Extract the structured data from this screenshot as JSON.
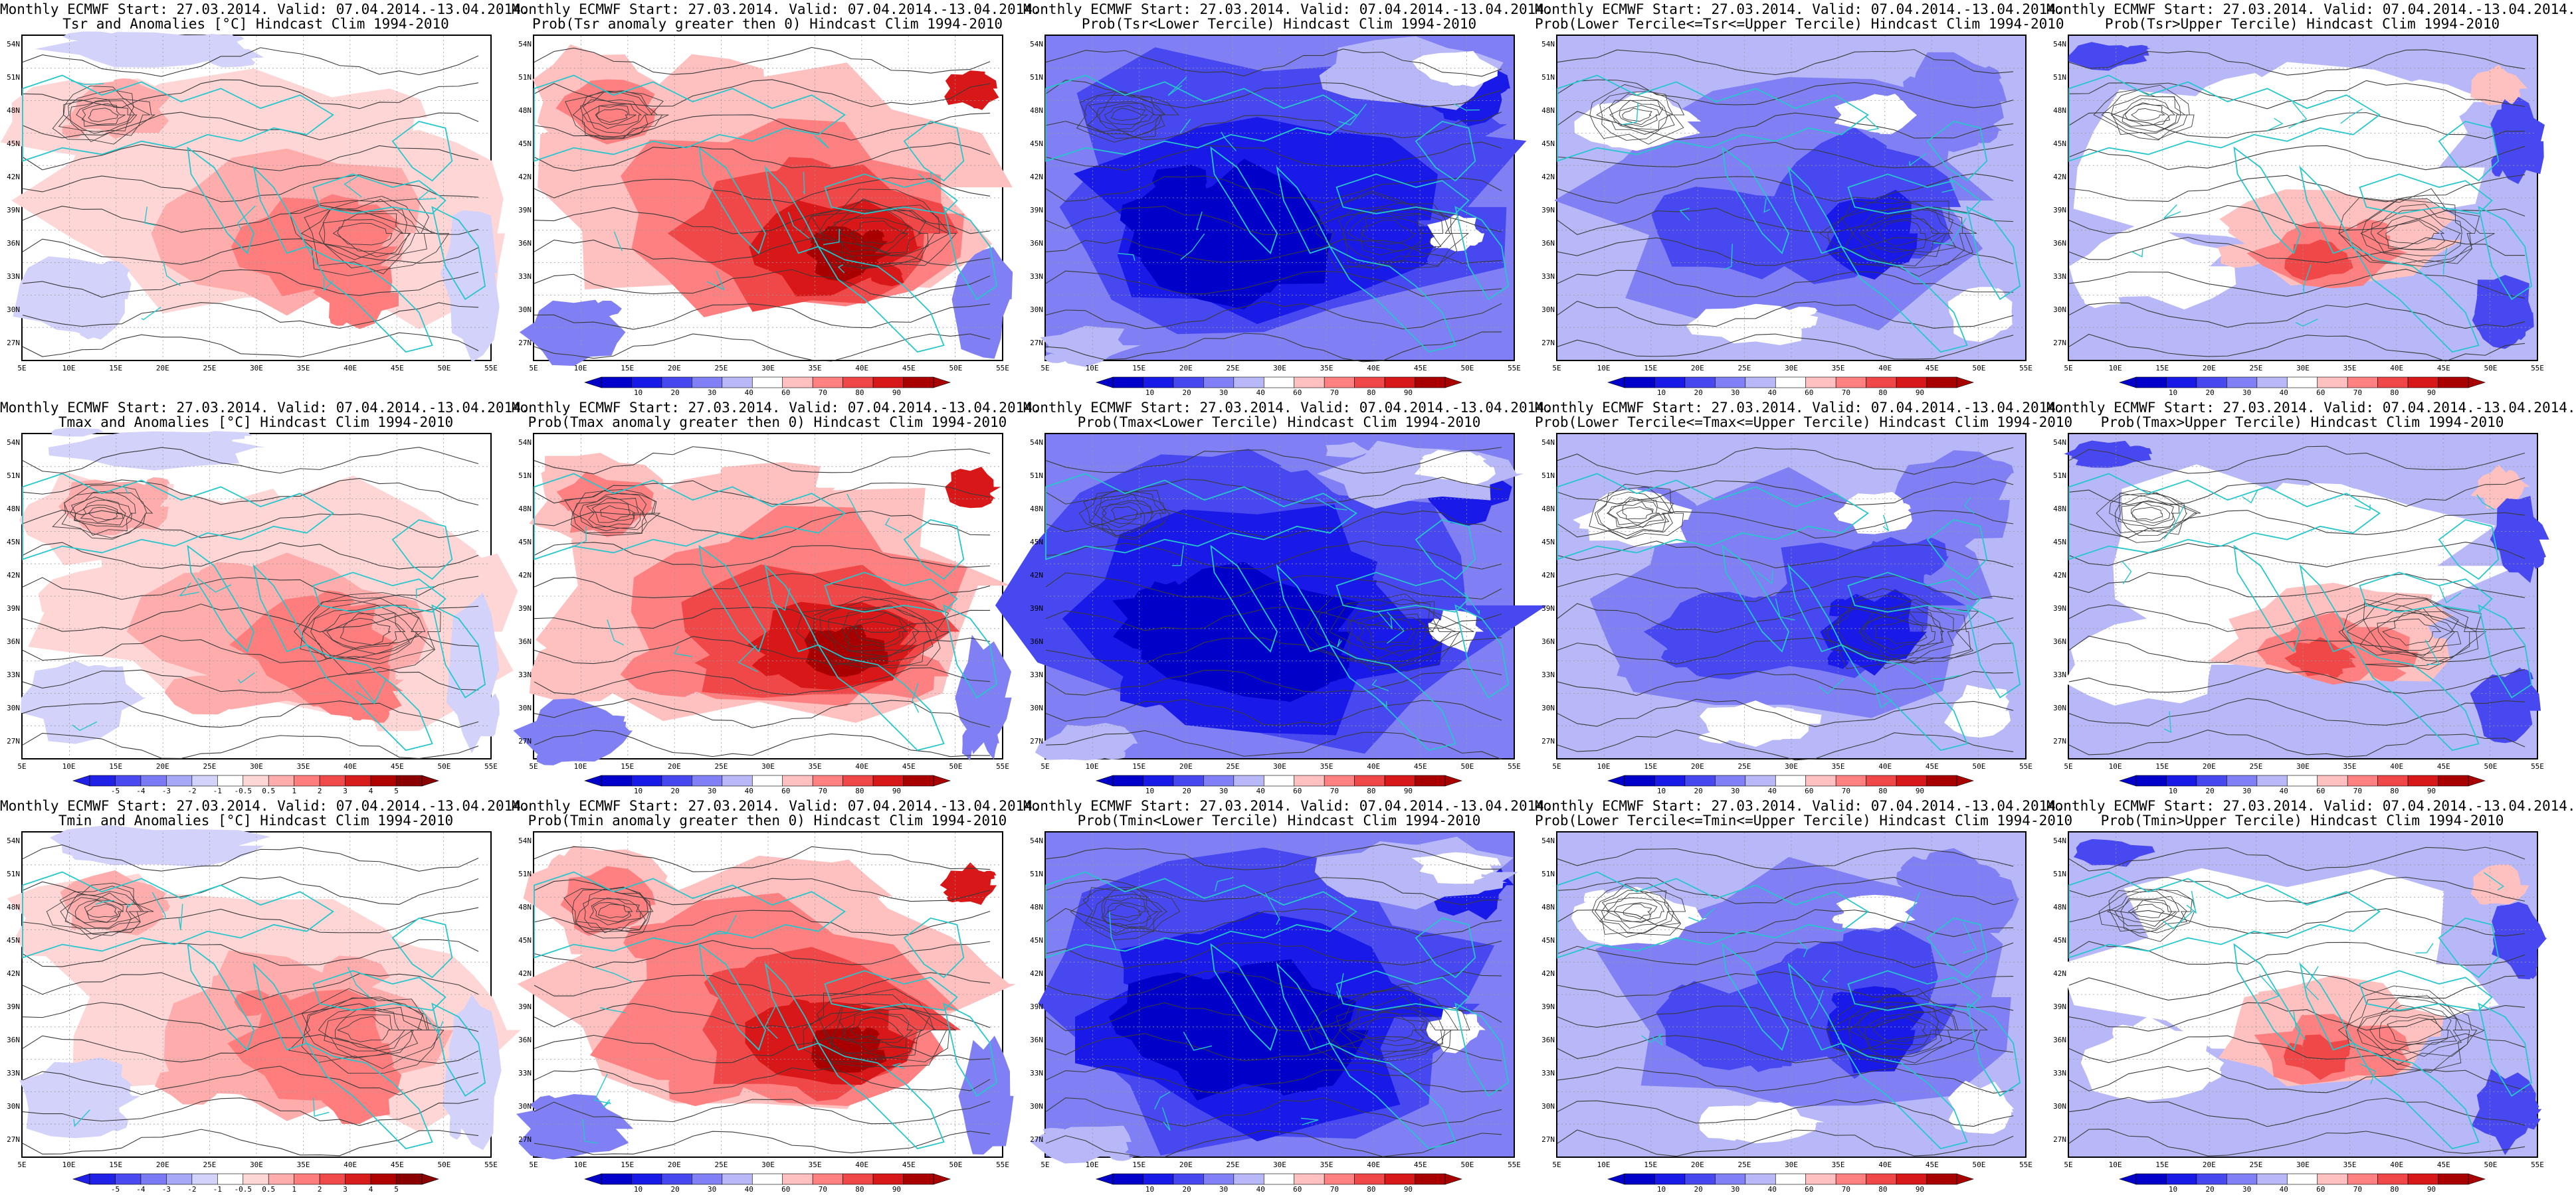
{
  "panels": [
    {
      "title1": "Monthly ECMWF Start: 27.03.2014. Valid: 07.04.2014.-13.04.2014.",
      "title2": "Tsr and Anomalies [°C] Hindcast Clim 1994-2010",
      "kind": "anom",
      "colorbar": []
    },
    {
      "title1": "Monthly ECMWF Start: 27.03.2014. Valid: 07.04.2014.-13.04.2014.",
      "title2": "Prob(Tsr anomaly greater then 0) Hindcast Clim 1994-2010",
      "kind": "warm",
      "colorbar": [
        "10",
        "20",
        "30",
        "40",
        "60",
        "70",
        "80",
        "90"
      ]
    },
    {
      "title1": "Monthly ECMWF Start: 27.03.2014. Valid: 07.04.2014.-13.04.2014.",
      "title2": "Prob(Tsr<Lower Tercile) Hindcast Clim 1994-2010",
      "kind": "cold",
      "colorbar": [
        "10",
        "20",
        "30",
        "40",
        "60",
        "70",
        "80",
        "90"
      ]
    },
    {
      "title1": "Monthly ECMWF Start: 27.03.2014. Valid: 07.04.2014.-13.04.2014.",
      "title2": "Prob(Lower Tercile<=Tsr<=Upper Tercile) Hindcast Clim 1994-2010",
      "kind": "mid",
      "colorbar": [
        "10",
        "20",
        "30",
        "40",
        "60",
        "70",
        "80",
        "90"
      ]
    },
    {
      "title1": "Monthly ECMWF Start: 27.03.2014. Valid: 07.04.2014.-13.04.2014.",
      "title2": "Prob(Tsr>Upper Tercile) Hindcast Clim 1994-2010",
      "kind": "upper",
      "colorbar": [
        "10",
        "20",
        "30",
        "40",
        "60",
        "70",
        "80",
        "90"
      ]
    },
    {
      "title1": "Monthly ECMWF Start: 27.03.2014. Valid: 07.04.2014.-13.04.2014.",
      "title2": "Tmax and Anomalies [°C] Hindcast Clim 1994-2010",
      "kind": "anom",
      "colorbar": [
        "-5",
        "-4",
        "-3",
        "-2",
        "-1",
        "-0.5",
        "0.5",
        "1",
        "2",
        "3",
        "4",
        "5"
      ]
    },
    {
      "title1": "Monthly ECMWF Start: 27.03.2014. Valid: 07.04.2014.-13.04.2014.",
      "title2": "Prob(Tmax anomaly greater then 0) Hindcast Clim 1994-2010",
      "kind": "warm",
      "colorbar": [
        "10",
        "20",
        "30",
        "40",
        "60",
        "70",
        "80",
        "90"
      ]
    },
    {
      "title1": "Monthly ECMWF Start: 27.03.2014. Valid: 07.04.2014.-13.04.2014.",
      "title2": "Prob(Tmax<Lower Tercile) Hindcast Clim 1994-2010",
      "kind": "cold",
      "colorbar": [
        "10",
        "20",
        "30",
        "40",
        "60",
        "70",
        "80",
        "90"
      ]
    },
    {
      "title1": "Monthly ECMWF Start: 27.03.2014. Valid: 07.04.2014.-13.04.2014.",
      "title2": "Prob(Lower Tercile<=Tmax<=Upper Tercile) Hindcast Clim 1994-2010",
      "kind": "mid",
      "colorbar": [
        "10",
        "20",
        "30",
        "40",
        "60",
        "70",
        "80",
        "90"
      ]
    },
    {
      "title1": "Monthly ECMWF Start: 27.03.2014. Valid: 07.04.2014.-13.04.2014.",
      "title2": "Prob(Tmax>Upper Tercile) Hindcast Clim 1994-2010",
      "kind": "upper",
      "colorbar": [
        "10",
        "20",
        "30",
        "40",
        "60",
        "70",
        "80",
        "90"
      ]
    },
    {
      "title1": "Monthly ECMWF Start: 27.03.2014. Valid: 07.04.2014.-13.04.2014.",
      "title2": "Tmin and Anomalies [°C] Hindcast Clim 1994-2010",
      "kind": "anom",
      "colorbar": [
        "-5",
        "-4",
        "-3",
        "-2",
        "-1",
        "-0.5",
        "0.5",
        "1",
        "2",
        "3",
        "4",
        "5"
      ]
    },
    {
      "title1": "Monthly ECMWF Start: 27.03.2014. Valid: 07.04.2014.-13.04.2014.",
      "title2": "Prob(Tmin anomaly greater then 0) Hindcast Clim 1994-2010",
      "kind": "warm",
      "colorbar": [
        "10",
        "20",
        "30",
        "40",
        "60",
        "70",
        "80",
        "90"
      ]
    },
    {
      "title1": "Monthly ECMWF Start: 27.03.2014. Valid: 07.04.2014.-13.04.2014.",
      "title2": "Prob(Tmin<Lower Tercile) Hindcast Clim 1994-2010",
      "kind": "cold",
      "colorbar": [
        "10",
        "20",
        "30",
        "40",
        "60",
        "70",
        "80",
        "90"
      ]
    },
    {
      "title1": "Monthly ECMWF Start: 27.03.2014. Valid: 07.04.2014.-13.04.2014.",
      "title2": "Prob(Lower Tercile<=Tmin<=Upper Tercile) Hindcast Clim 1994-2010",
      "kind": "mid",
      "colorbar": [
        "10",
        "20",
        "30",
        "40",
        "60",
        "70",
        "80",
        "90"
      ]
    },
    {
      "title1": "Monthly ECMWF Start: 27.03.2014. Valid: 07.04.2014.-13.04.2014.",
      "title2": "Prob(Tmin>Upper Tercile) Hindcast Clim 1994-2010",
      "kind": "upper",
      "colorbar": [
        "10",
        "20",
        "30",
        "40",
        "60",
        "70",
        "80",
        "90"
      ]
    }
  ],
  "lat_labels": [
    "54N",
    "51N",
    "48N",
    "45N",
    "42N",
    "39N",
    "36N",
    "33N",
    "30N",
    "27N"
  ],
  "lon_labels": [
    "5E",
    "10E",
    "15E",
    "20E",
    "25E",
    "30E",
    "35E",
    "40E",
    "45E",
    "50E",
    "55E"
  ],
  "colors": {
    "anom_scale": [
      "#2020e6",
      "#4a4af0",
      "#7a7af4",
      "#a8a8f8",
      "#d2d2fb",
      "#ffffff",
      "#ffd6d6",
      "#ffacac",
      "#ff7d7d",
      "#f04a4a",
      "#d81c1c",
      "#b00000",
      "#8b0000"
    ],
    "prob_scale": [
      "#0000c8",
      "#1a1ae8",
      "#4848f0",
      "#8080f4",
      "#b8b8f8",
      "#ffffff",
      "#ffc0c0",
      "#ff8080",
      "#f04848",
      "#d81818",
      "#a80000"
    ],
    "coast": "#26c6cc",
    "contour": "#3a3a3a"
  }
}
